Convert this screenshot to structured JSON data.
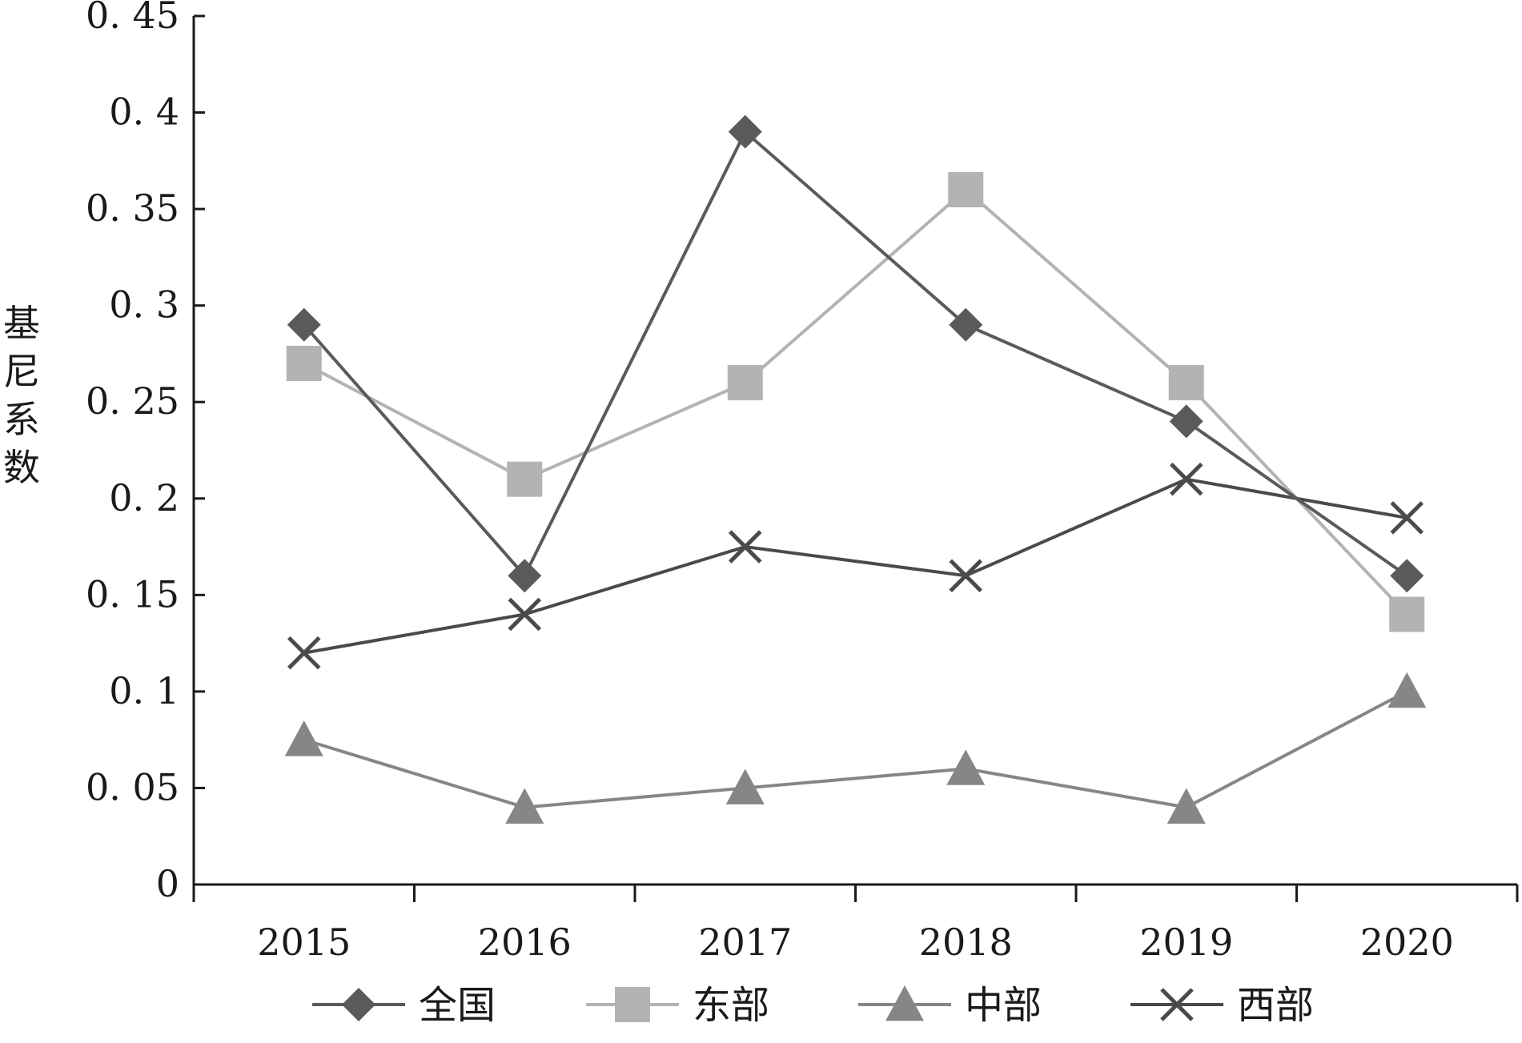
{
  "chart_data": {
    "type": "line",
    "title": "",
    "xlabel": "",
    "ylabel": "基尼系数",
    "categories": [
      "2015",
      "2016",
      "2017",
      "2018",
      "2019",
      "2020"
    ],
    "ylim": [
      0,
      0.45
    ],
    "yticks": [
      0,
      0.05,
      0.1,
      0.15,
      0.2,
      0.25,
      0.3,
      0.35,
      0.4,
      0.45
    ],
    "ytick_labels": [
      "0",
      "0. 05",
      "0. 1",
      "0. 15",
      "0. 2",
      "0. 25",
      "0. 3",
      "0. 35",
      "0. 4",
      "0. 45"
    ],
    "grid": false,
    "legend_position": "bottom",
    "series": [
      {
        "name": "全国",
        "marker": "diamond",
        "color": "#5a5a5a",
        "values": [
          0.29,
          0.16,
          0.39,
          0.29,
          0.24,
          0.16
        ]
      },
      {
        "name": "东部",
        "marker": "square",
        "color": "#b3b3b3",
        "values": [
          0.27,
          0.21,
          0.26,
          0.36,
          0.26,
          0.14
        ]
      },
      {
        "name": "中部",
        "marker": "triangle",
        "color": "#868686",
        "values": [
          0.075,
          0.04,
          0.05,
          0.06,
          0.04,
          0.1
        ]
      },
      {
        "name": "西部",
        "marker": "x",
        "color": "#4a4a4a",
        "values": [
          0.12,
          0.14,
          0.175,
          0.16,
          0.21,
          0.19
        ]
      }
    ]
  }
}
